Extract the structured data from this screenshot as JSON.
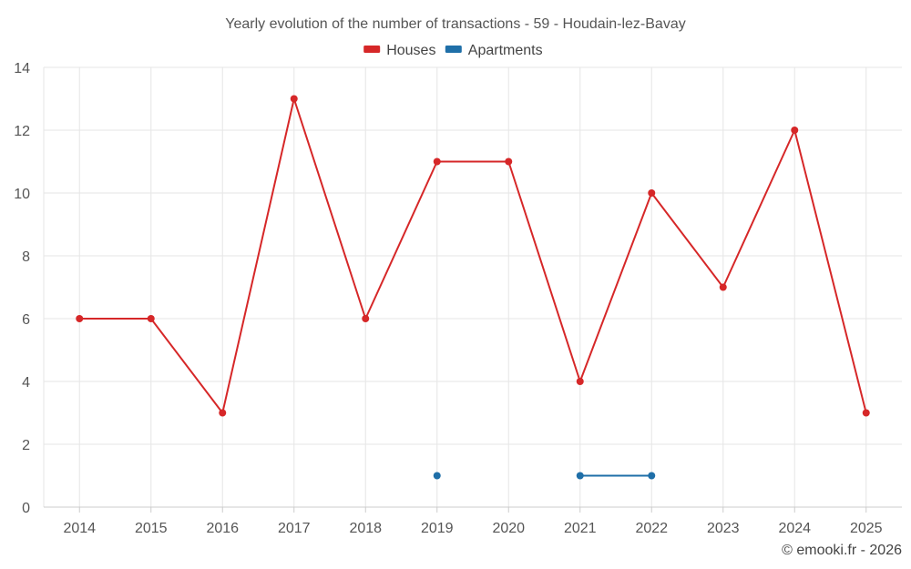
{
  "chart_data": {
    "type": "line",
    "title": "Yearly evolution of the number of transactions - 59 - Houdain-lez-Bavay",
    "categories": [
      "2014",
      "2015",
      "2016",
      "2017",
      "2018",
      "2019",
      "2020",
      "2021",
      "2022",
      "2023",
      "2024",
      "2025"
    ],
    "ylim": [
      0,
      14
    ],
    "yticks": [
      0,
      2,
      4,
      6,
      8,
      10,
      12,
      14
    ],
    "grid": true,
    "legend_position": "top-center",
    "series": [
      {
        "name": "Houses",
        "color": "#d62728",
        "values": [
          6,
          6,
          3,
          13,
          6,
          11,
          11,
          4,
          10,
          7,
          12,
          3
        ]
      },
      {
        "name": "Apartments",
        "color": "#1f6fa8",
        "values": [
          null,
          null,
          null,
          null,
          null,
          1,
          null,
          1,
          1,
          null,
          null,
          null
        ]
      }
    ],
    "xlabel": "",
    "ylabel": ""
  },
  "credit": "© emooki.fr - 2026"
}
